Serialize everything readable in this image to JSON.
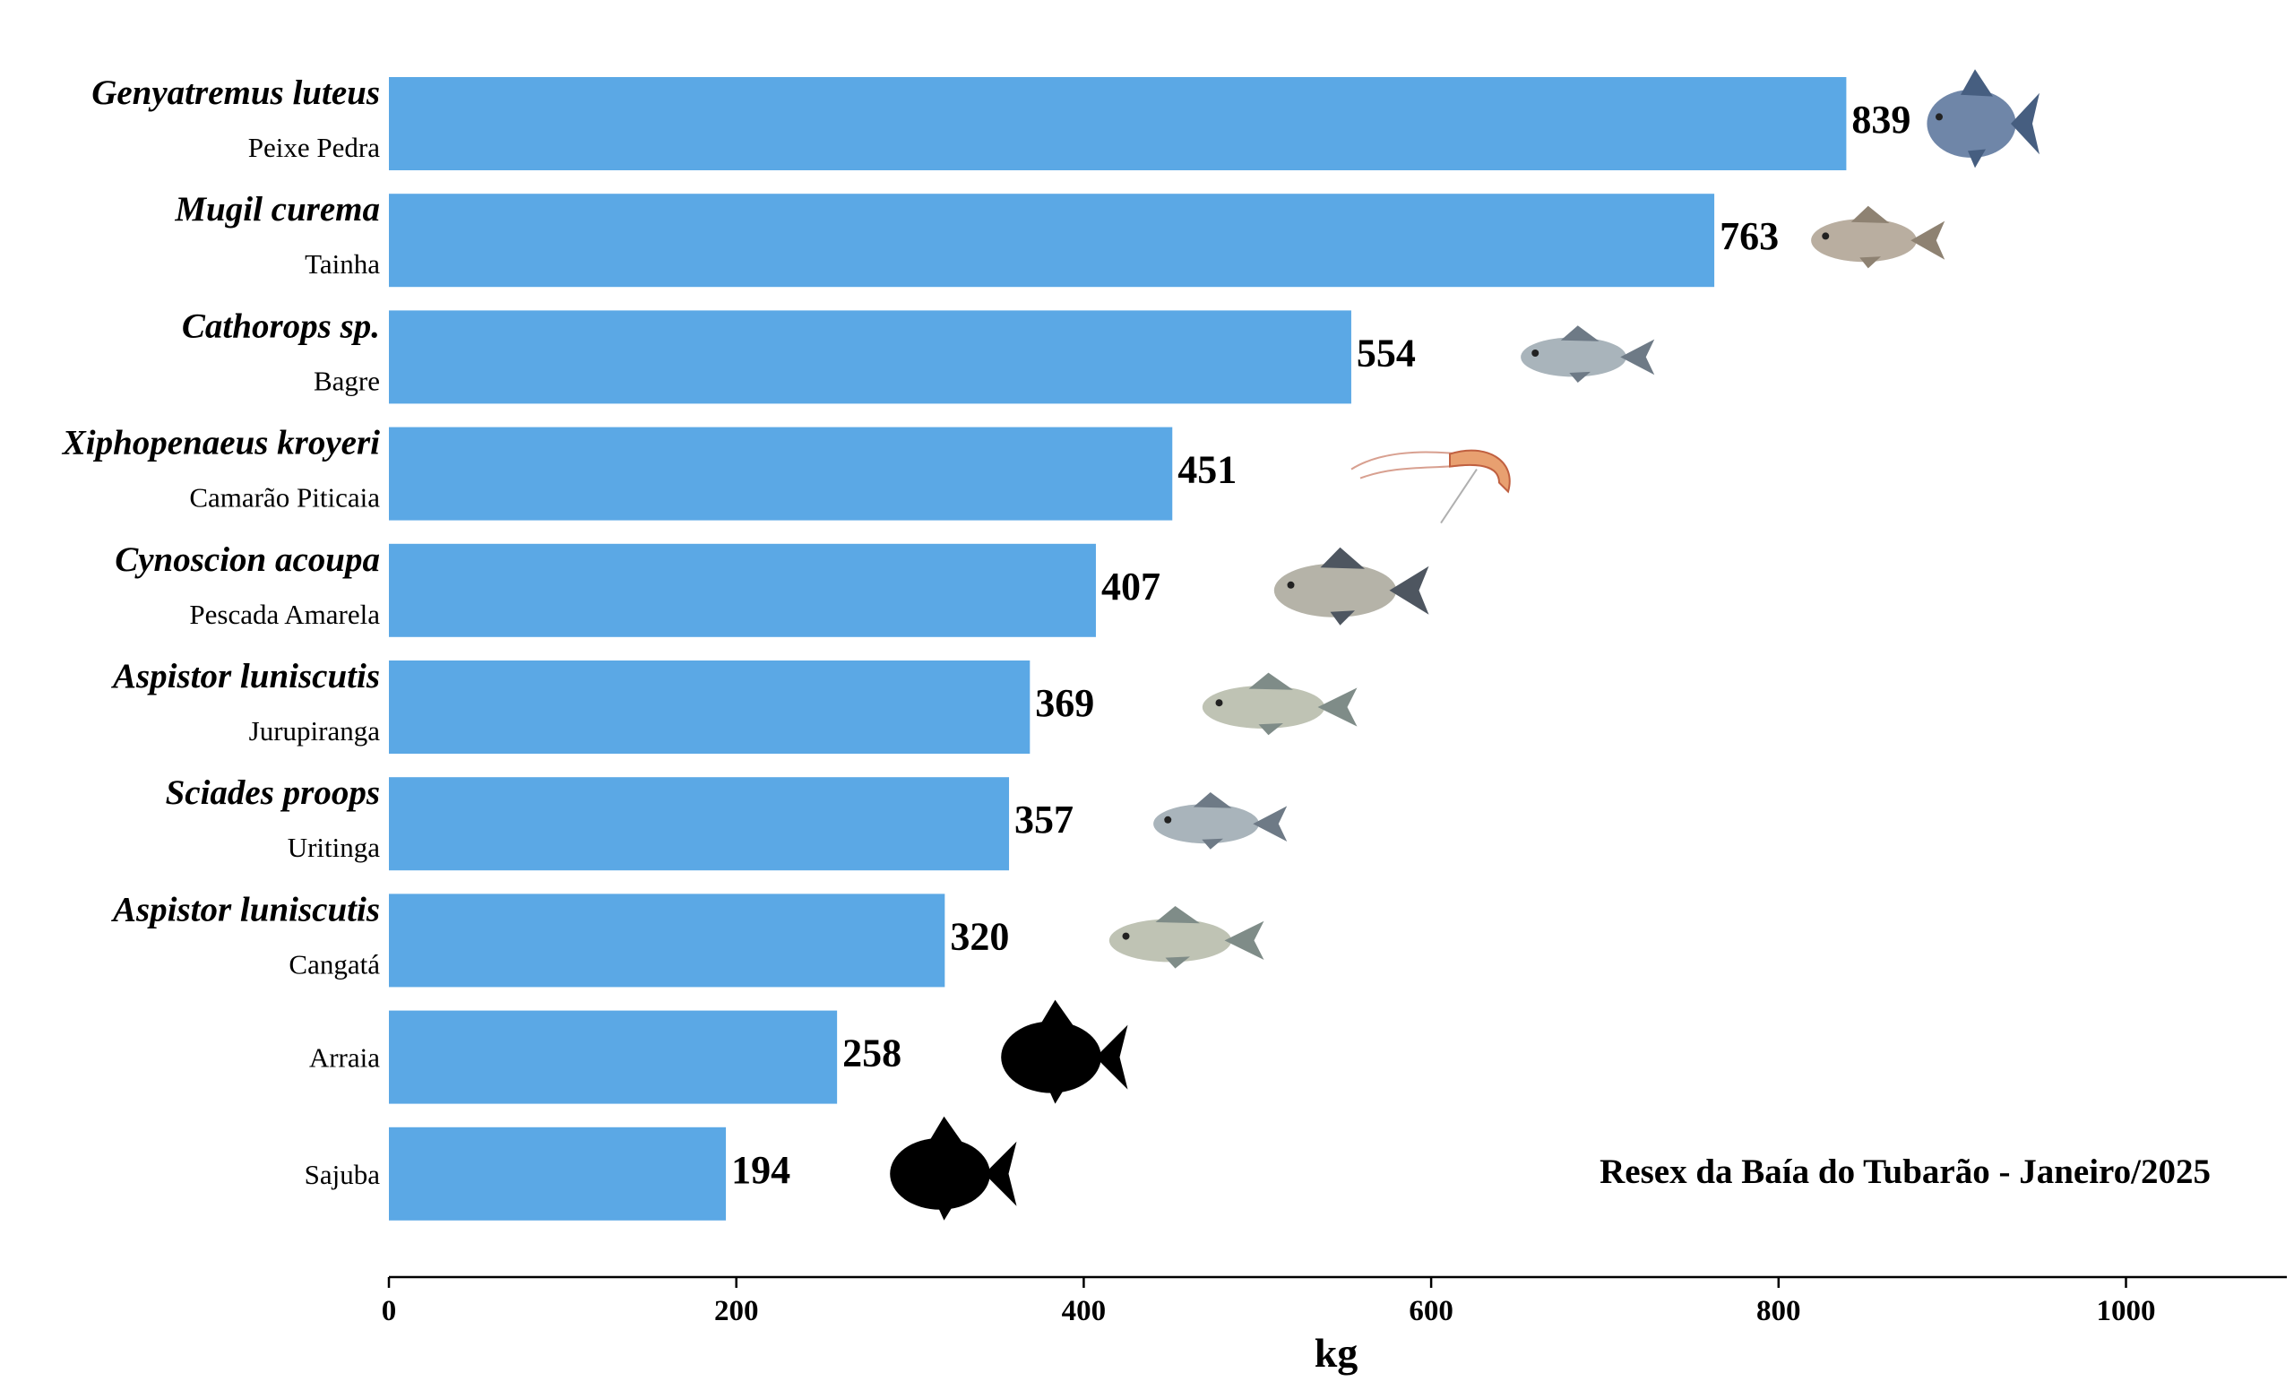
{
  "chart_data": {
    "type": "bar",
    "orientation": "horizontal",
    "title": "",
    "annotation": "Resex da Baía do Tubarão - Janeiro/2025",
    "xlabel": "kg",
    "ylabel": "",
    "xlim": [
      0,
      1090
    ],
    "xticks": [
      0,
      200,
      400,
      600,
      800,
      1000
    ],
    "grid": false,
    "bar_color": "#5ba8e5",
    "categories": [
      {
        "scientific": "Genyatremus luteus",
        "common": "Peixe Pedra",
        "value": 839,
        "icon": "grunt-fish-photo-icon"
      },
      {
        "scientific": "Mugil curema",
        "common": "Tainha",
        "value": 763,
        "icon": "mullet-fish-photo-icon"
      },
      {
        "scientific": "Cathorops sp.",
        "common": "Bagre",
        "value": 554,
        "icon": "catfish-photo-icon"
      },
      {
        "scientific": "Xiphopenaeus kroyeri",
        "common": "Camarão Piticaia",
        "value": 451,
        "icon": "shrimp-photo-icon"
      },
      {
        "scientific": "Cynoscion acoupa",
        "common": "Pescada Amarela",
        "value": 407,
        "icon": "weakfish-photo-icon"
      },
      {
        "scientific": "Aspistor luniscutis",
        "common": "Jurupiranga",
        "value": 369,
        "icon": "sea-catfish-photo-icon"
      },
      {
        "scientific": "Sciades proops",
        "common": "Uritinga",
        "value": 357,
        "icon": "catfish-photo-icon"
      },
      {
        "scientific": "Aspistor luniscutis",
        "common": "Cangatá",
        "value": 320,
        "icon": "sea-catfish-photo-icon"
      },
      {
        "scientific": "",
        "common": "Arraia",
        "value": 258,
        "icon": "fish-silhouette-icon"
      },
      {
        "scientific": "",
        "common": "Sajuba",
        "value": 194,
        "icon": "fish-silhouette-icon"
      }
    ]
  }
}
